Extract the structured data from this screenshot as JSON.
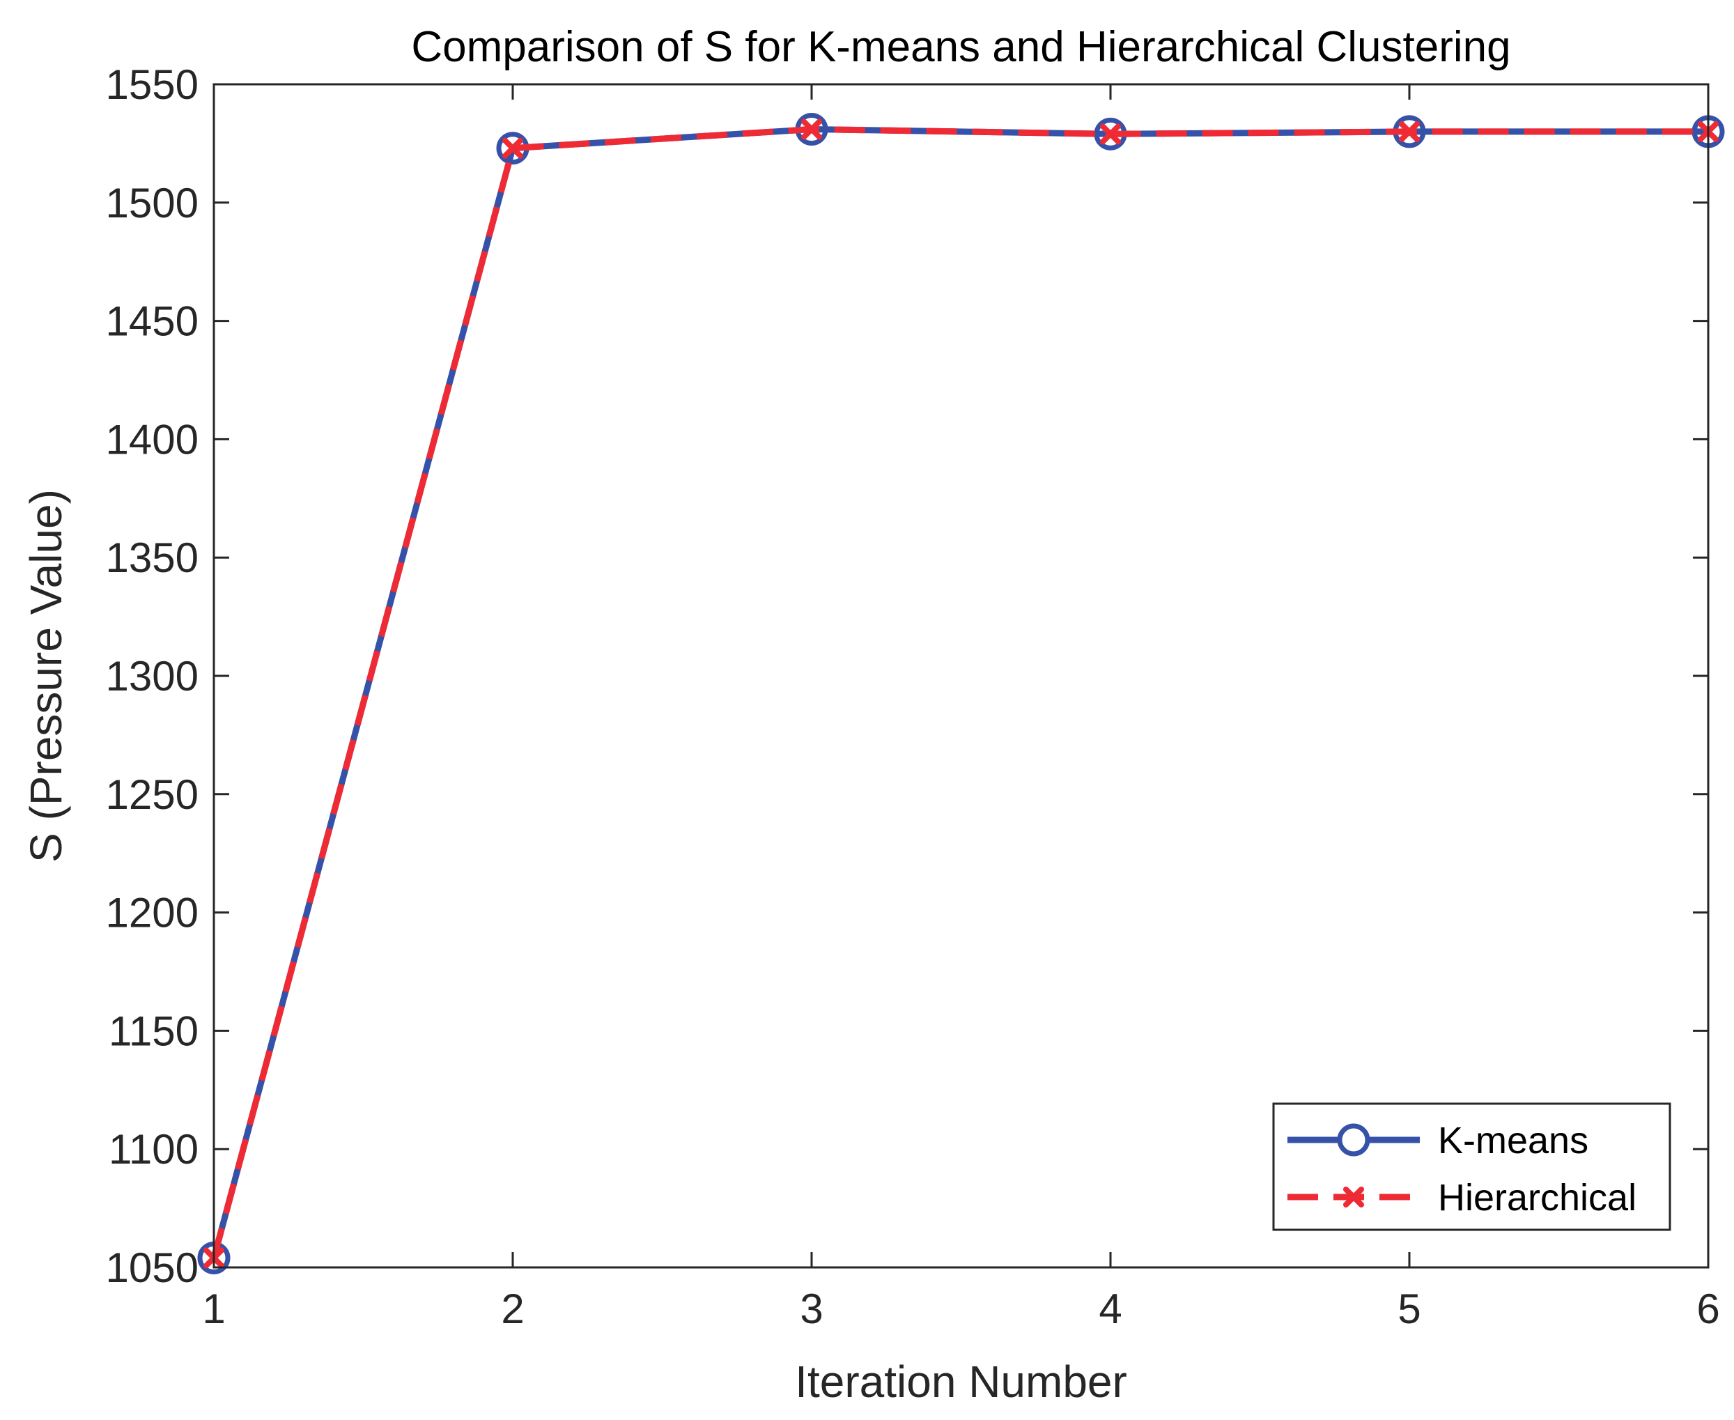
{
  "chart_data": {
    "type": "line",
    "title": "Comparison of S for K-means and Hierarchical Clustering",
    "xlabel": "Iteration Number",
    "ylabel": "S (Pressure Value)",
    "x": [
      1,
      2,
      3,
      4,
      5,
      6
    ],
    "xlim": [
      1,
      6
    ],
    "ylim": [
      1050,
      1550
    ],
    "xticks": [
      1,
      2,
      3,
      4,
      5,
      6
    ],
    "yticks": [
      1050,
      1100,
      1150,
      1200,
      1250,
      1300,
      1350,
      1400,
      1450,
      1500,
      1550
    ],
    "grid": false,
    "legend_position": "bottom-right",
    "series": [
      {
        "name": "K-means",
        "values": [
          1054,
          1523,
          1531,
          1529,
          1530,
          1530
        ],
        "color": "#3651A8",
        "line_style": "solid",
        "marker": "circle"
      },
      {
        "name": "Hierarchical",
        "values": [
          1054,
          1523,
          1531,
          1529,
          1530,
          1530
        ],
        "color": "#EE2B35",
        "line_style": "dashed",
        "marker": "x"
      }
    ]
  }
}
